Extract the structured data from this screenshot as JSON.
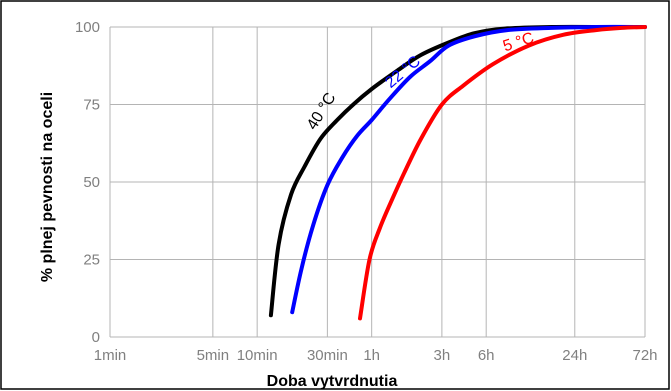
{
  "chart_data": {
    "type": "line",
    "xlabel": "Doba vytvrdnutia",
    "ylabel": "% plnej pevnosti na oceli",
    "x_scale": "log",
    "x_unit": "min",
    "xlim": [
      1,
      4320
    ],
    "ylim": [
      0,
      100
    ],
    "grid": true,
    "x_ticks": [
      {
        "value": 1,
        "label": "1min"
      },
      {
        "value": 5,
        "label": "5min"
      },
      {
        "value": 10,
        "label": "10min"
      },
      {
        "value": 30,
        "label": "30min"
      },
      {
        "value": 60,
        "label": "1h"
      },
      {
        "value": 180,
        "label": "3h"
      },
      {
        "value": 360,
        "label": "6h"
      },
      {
        "value": 1440,
        "label": "24h"
      },
      {
        "value": 4320,
        "label": "72h"
      }
    ],
    "y_ticks": [
      0,
      25,
      50,
      75,
      100
    ],
    "series": [
      {
        "name": "40 °C",
        "color": "#000000",
        "x": [
          12.4,
          14,
          17,
          21,
          27,
          35,
          45,
          60,
          90,
          130,
          200,
          300,
          480,
          1000,
          2500,
          4320
        ],
        "y": [
          7,
          30,
          46,
          55,
          64,
          70,
          75,
          80,
          86,
          91,
          95,
          98,
          99.5,
          100,
          100,
          100
        ]
      },
      {
        "name": "22 °C",
        "color": "#0000ff",
        "x": [
          17.3,
          20,
          24,
          30,
          38,
          48,
          60,
          80,
          110,
          150,
          200,
          300,
          500,
          1000,
          2000,
          4320
        ],
        "y": [
          8,
          22,
          36,
          49,
          58,
          65,
          70,
          77,
          84,
          89,
          94,
          97,
          99,
          99.7,
          100,
          100
        ]
      },
      {
        "name": "5 °C",
        "color": "#ff0000",
        "x": [
          50,
          58,
          68,
          82,
          100,
          130,
          180,
          250,
          400,
          700,
          1200,
          2000,
          3000,
          4320
        ],
        "y": [
          6,
          25,
          35,
          44,
          53,
          64,
          75,
          81,
          88,
          94,
          97.5,
          99,
          99.7,
          100
        ]
      }
    ]
  }
}
